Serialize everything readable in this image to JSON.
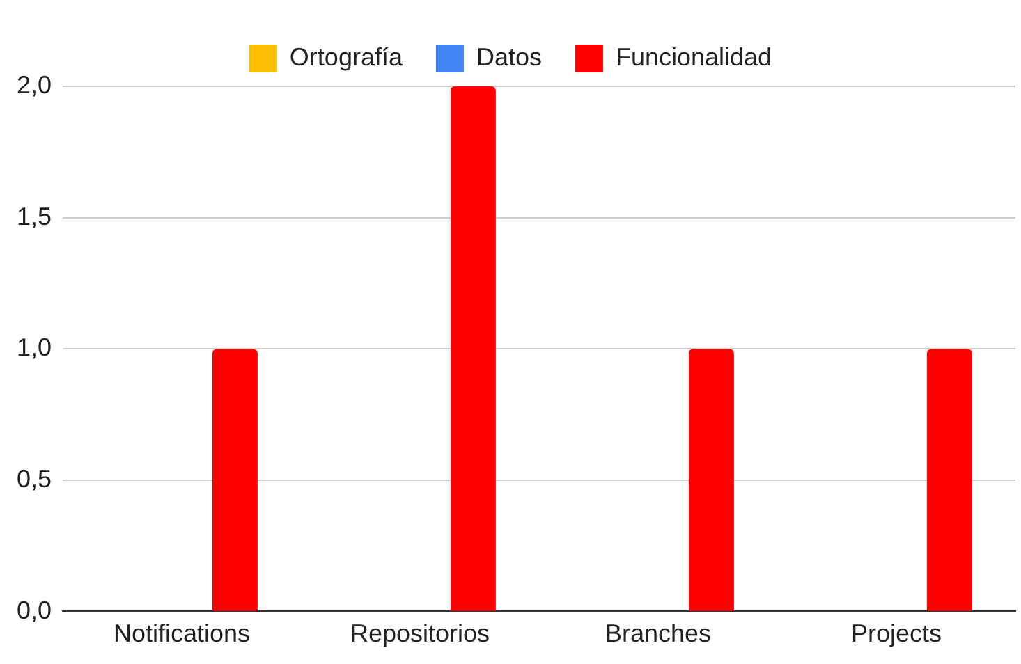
{
  "chart_data": {
    "type": "bar",
    "categories": [
      "Notifications",
      "Repositorios",
      "Branches",
      "Projects"
    ],
    "series": [
      {
        "name": "Ortografía",
        "color": "#fbbc04",
        "values": [
          0,
          0,
          0,
          0
        ]
      },
      {
        "name": "Datos",
        "color": "#4285f4",
        "values": [
          0,
          0,
          0,
          0
        ]
      },
      {
        "name": "Funcionalidad",
        "color": "#ff0000",
        "values": [
          1,
          2,
          1,
          1
        ]
      }
    ],
    "ylim": [
      0,
      2
    ],
    "yticks": [
      {
        "value": 0,
        "label": "0,0"
      },
      {
        "value": 0.5,
        "label": "0,5"
      },
      {
        "value": 1,
        "label": "1,0"
      },
      {
        "value": 1.5,
        "label": "1,5"
      },
      {
        "value": 2,
        "label": "2,0"
      }
    ],
    "grid": "y",
    "legend": "top"
  }
}
